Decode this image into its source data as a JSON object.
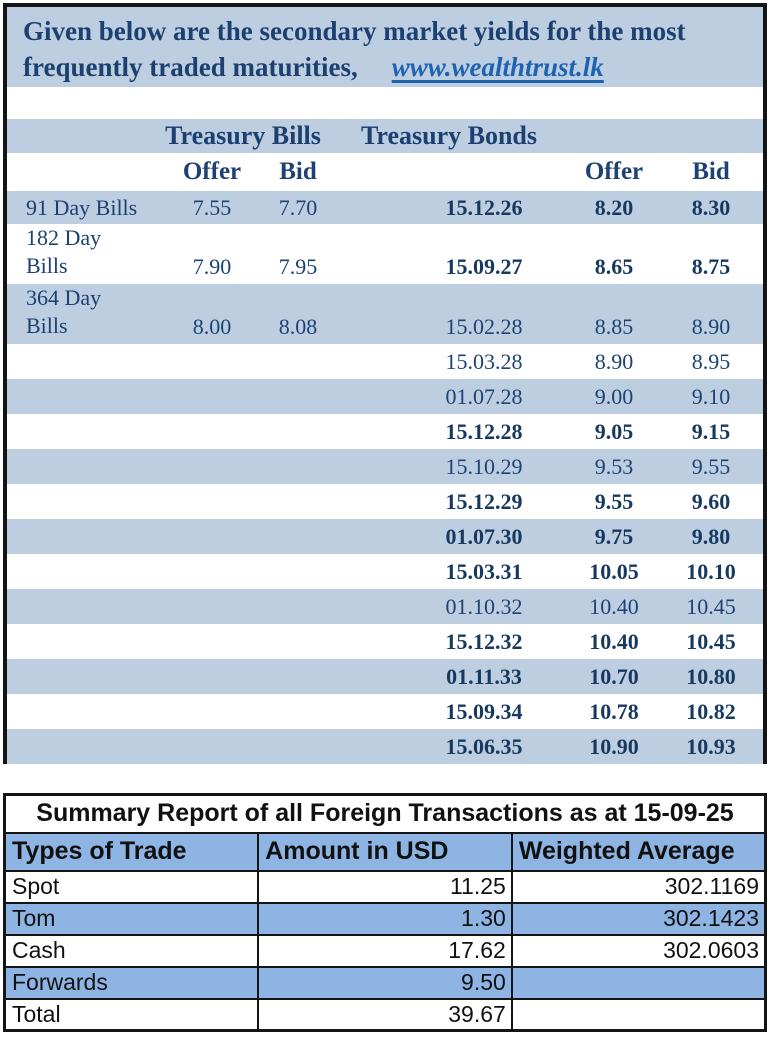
{
  "colors": {
    "band_blue": "#BDCEE1",
    "summary_blue": "#8DB4E2",
    "navy_text": "#1C4070",
    "link_blue": "#1E62B0",
    "border_black": "#141414"
  },
  "yields_report": {
    "title_line1": "Given below are the secondary market yields for the most",
    "title_line2": "frequently traded maturities,",
    "website_link": "www.wealthtrust.lk",
    "section_headers": {
      "bills": "Treasury Bills",
      "bonds": "Treasury Bonds"
    },
    "column_headers": {
      "bills_offer": "Offer",
      "bills_bid": "Bid",
      "bonds_offer": "Offer",
      "bonds_bid": "Bid"
    },
    "rows": [
      {
        "bill_label": "91 Day Bills",
        "bill_offer": "7.55",
        "bill_bid": "7.70",
        "bond_date": "15.12.26",
        "bond_offer": "8.20",
        "bond_bid": "8.30",
        "bond_bold": true,
        "tall": false
      },
      {
        "bill_label": "182 Day\nBills",
        "bill_offer": "7.90",
        "bill_bid": "7.95",
        "bond_date": "15.09.27",
        "bond_offer": "8.65",
        "bond_bid": "8.75",
        "bond_bold": true,
        "tall": true
      },
      {
        "bill_label": "364 Day\nBills",
        "bill_offer": "8.00",
        "bill_bid": "8.08",
        "bond_date": "15.02.28",
        "bond_offer": "8.85",
        "bond_bid": "8.90",
        "bond_bold": false,
        "tall": true
      },
      {
        "bill_label": "",
        "bill_offer": "",
        "bill_bid": "",
        "bond_date": "15.03.28",
        "bond_offer": "8.90",
        "bond_bid": "8.95",
        "bond_bold": false,
        "tall": false
      },
      {
        "bill_label": "",
        "bill_offer": "",
        "bill_bid": "",
        "bond_date": "01.07.28",
        "bond_offer": "9.00",
        "bond_bid": "9.10",
        "bond_bold": false,
        "tall": false
      },
      {
        "bill_label": "",
        "bill_offer": "",
        "bill_bid": "",
        "bond_date": "15.12.28",
        "bond_offer": "9.05",
        "bond_bid": "9.15",
        "bond_bold": true,
        "tall": false
      },
      {
        "bill_label": "",
        "bill_offer": "",
        "bill_bid": "",
        "bond_date": "15.10.29",
        "bond_offer": "9.53",
        "bond_bid": "9.55",
        "bond_bold": false,
        "tall": false
      },
      {
        "bill_label": "",
        "bill_offer": "",
        "bill_bid": "",
        "bond_date": "15.12.29",
        "bond_offer": "9.55",
        "bond_bid": "9.60",
        "bond_bold": true,
        "tall": false
      },
      {
        "bill_label": "",
        "bill_offer": "",
        "bill_bid": "",
        "bond_date": "01.07.30",
        "bond_offer": "9.75",
        "bond_bid": "9.80",
        "bond_bold": true,
        "tall": false
      },
      {
        "bill_label": "",
        "bill_offer": "",
        "bill_bid": "",
        "bond_date": "15.03.31",
        "bond_offer": "10.05",
        "bond_bid": "10.10",
        "bond_bold": true,
        "tall": false
      },
      {
        "bill_label": "",
        "bill_offer": "",
        "bill_bid": "",
        "bond_date": "01.10.32",
        "bond_offer": "10.40",
        "bond_bid": "10.45",
        "bond_bold": false,
        "tall": false
      },
      {
        "bill_label": "",
        "bill_offer": "",
        "bill_bid": "",
        "bond_date": "15.12.32",
        "bond_offer": "10.40",
        "bond_bid": "10.45",
        "bond_bold": true,
        "tall": false
      },
      {
        "bill_label": "",
        "bill_offer": "",
        "bill_bid": "",
        "bond_date": "01.11.33",
        "bond_offer": "10.70",
        "bond_bid": "10.80",
        "bond_bold": true,
        "tall": false
      },
      {
        "bill_label": "",
        "bill_offer": "",
        "bill_bid": "",
        "bond_date": "15.09.34",
        "bond_offer": "10.78",
        "bond_bid": "10.82",
        "bond_bold": true,
        "tall": false
      },
      {
        "bill_label": "",
        "bill_offer": "",
        "bill_bid": "",
        "bond_date": "15.06.35",
        "bond_offer": "10.90",
        "bond_bid": "10.93",
        "bond_bold": true,
        "tall": false
      }
    ]
  },
  "summary_report": {
    "title": "Summary Report of all Foreign Transactions as at 15-09-25",
    "column_headers": [
      "Types of Trade",
      "Amount in USD",
      "Weighted Average"
    ],
    "rows": [
      {
        "type": "Spot",
        "amount": "11.25",
        "weighted_average": "302.1169"
      },
      {
        "type": "Tom",
        "amount": "1.30",
        "weighted_average": "302.1423"
      },
      {
        "type": "Cash",
        "amount": "17.62",
        "weighted_average": "302.0603"
      },
      {
        "type": "Forwards",
        "amount": "9.50",
        "weighted_average": ""
      },
      {
        "type": "Total",
        "amount": "39.67",
        "weighted_average": ""
      }
    ]
  }
}
